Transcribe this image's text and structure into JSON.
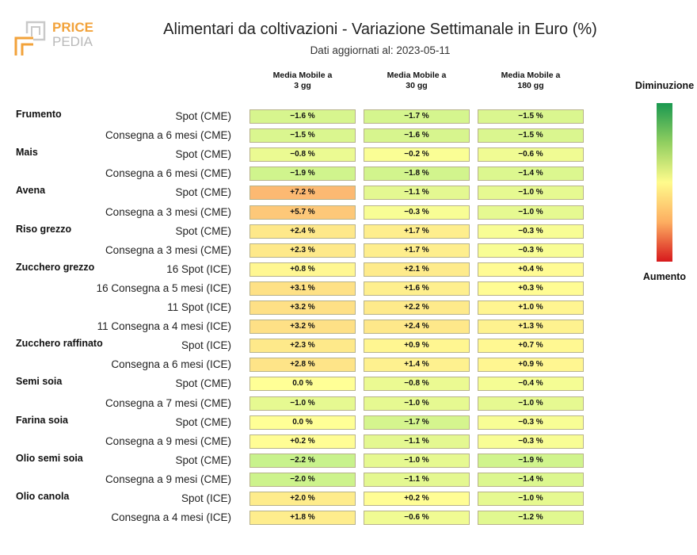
{
  "header": {
    "title": "Alimentari da coltivazioni - Variazione Settimanale in Euro (%)",
    "subtitle": "Dati aggiornati al: 2023-05-11",
    "logo_top": "PRICE",
    "logo_bottom": "PEDIA"
  },
  "legend": {
    "top_label": "Diminuzione",
    "bottom_label": "Aumento"
  },
  "chart_data": {
    "type": "heatmap",
    "columns": [
      "Media Mobile a\n3 gg",
      "Media Mobile a\n30 gg",
      "Media Mobile a\n180 gg"
    ],
    "rows": [
      {
        "commodity": "Frumento",
        "label": "Spot (CME)",
        "values": [
          -1.6,
          -1.7,
          -1.5
        ],
        "display": [
          "-1.6 %",
          "-1.7 %",
          "-1.5 %"
        ]
      },
      {
        "commodity": "",
        "label": "Consegna a 6 mesi (CME)",
        "values": [
          -1.5,
          -1.6,
          -1.5
        ],
        "display": [
          "-1.5 %",
          "-1.6 %",
          "-1.5 %"
        ]
      },
      {
        "commodity": "Mais",
        "label": "Spot (CME)",
        "values": [
          -0.8,
          -0.2,
          -0.6
        ],
        "display": [
          "-0.8 %",
          "-0.2 %",
          "-0.6 %"
        ]
      },
      {
        "commodity": "",
        "label": "Consegna a 6 mesi (CME)",
        "values": [
          -1.9,
          -1.8,
          -1.4
        ],
        "display": [
          "-1.9 %",
          "-1.8 %",
          "-1.4 %"
        ]
      },
      {
        "commodity": "Avena",
        "label": "Spot (CME)",
        "values": [
          7.2,
          -1.1,
          -1.0
        ],
        "display": [
          "+7.2 %",
          "-1.1 %",
          "-1.0 %"
        ]
      },
      {
        "commodity": "",
        "label": "Consegna a 3 mesi (CME)",
        "values": [
          5.7,
          -0.3,
          -1.0
        ],
        "display": [
          "+5.7 %",
          "-0.3 %",
          "-1.0 %"
        ]
      },
      {
        "commodity": "Riso grezzo",
        "label": "Spot (CME)",
        "values": [
          2.4,
          1.7,
          -0.3
        ],
        "display": [
          "+2.4 %",
          "+1.7 %",
          "-0.3 %"
        ]
      },
      {
        "commodity": "",
        "label": "Consegna a 3 mesi (CME)",
        "values": [
          2.3,
          1.7,
          -0.3
        ],
        "display": [
          "+2.3 %",
          "+1.7 %",
          "-0.3 %"
        ]
      },
      {
        "commodity": "Zucchero grezzo",
        "label": "16 Spot (ICE)",
        "values": [
          0.8,
          2.1,
          0.4
        ],
        "display": [
          "+0.8 %",
          "+2.1 %",
          "+0.4 %"
        ]
      },
      {
        "commodity": "",
        "label": "16 Consegna a 5 mesi (ICE)",
        "values": [
          3.1,
          1.6,
          0.3
        ],
        "display": [
          "+3.1 %",
          "+1.6 %",
          "+0.3 %"
        ]
      },
      {
        "commodity": "",
        "label": "11 Spot (ICE)",
        "values": [
          3.2,
          2.2,
          1.0
        ],
        "display": [
          "+3.2 %",
          "+2.2 %",
          "+1.0 %"
        ]
      },
      {
        "commodity": "",
        "label": "11 Consegna a 4 mesi (ICE)",
        "values": [
          3.2,
          2.4,
          1.3
        ],
        "display": [
          "+3.2 %",
          "+2.4 %",
          "+1.3 %"
        ]
      },
      {
        "commodity": "Zucchero raffinato",
        "label": "Spot (ICE)",
        "values": [
          2.3,
          0.9,
          0.7
        ],
        "display": [
          "+2.3 %",
          "+0.9 %",
          "+0.7 %"
        ]
      },
      {
        "commodity": "",
        "label": "Consegna a 6 mesi (ICE)",
        "values": [
          2.8,
          1.4,
          0.9
        ],
        "display": [
          "+2.8 %",
          "+1.4 %",
          "+0.9 %"
        ]
      },
      {
        "commodity": "Semi soia",
        "label": "Spot (CME)",
        "values": [
          0.0,
          -0.8,
          -0.4
        ],
        "display": [
          "0.0 %",
          "-0.8 %",
          "-0.4 %"
        ]
      },
      {
        "commodity": "",
        "label": "Consegna a 7 mesi (CME)",
        "values": [
          -1.0,
          -1.0,
          -1.0
        ],
        "display": [
          "-1.0 %",
          "-1.0 %",
          "-1.0 %"
        ]
      },
      {
        "commodity": "Farina soia",
        "label": "Spot (CME)",
        "values": [
          0.0,
          -1.7,
          -0.3
        ],
        "display": [
          "0.0 %",
          "-1.7 %",
          "-0.3 %"
        ]
      },
      {
        "commodity": "",
        "label": "Consegna a 9 mesi (CME)",
        "values": [
          0.2,
          -1.1,
          -0.3
        ],
        "display": [
          "+0.2 %",
          "-1.1 %",
          "-0.3 %"
        ]
      },
      {
        "commodity": "Olio semi soia",
        "label": "Spot (CME)",
        "values": [
          -2.2,
          -1.0,
          -1.9
        ],
        "display": [
          "-2.2 %",
          "-1.0 %",
          "-1.9 %"
        ]
      },
      {
        "commodity": "",
        "label": "Consegna a 9 mesi (CME)",
        "values": [
          -2.0,
          -1.1,
          -1.4
        ],
        "display": [
          "-2.0 %",
          "-1.1 %",
          "-1.4 %"
        ]
      },
      {
        "commodity": "Olio canola",
        "label": "Spot (ICE)",
        "values": [
          2.0,
          0.2,
          -1.0
        ],
        "display": [
          "+2.0 %",
          "+0.2 %",
          "-1.0 %"
        ]
      },
      {
        "commodity": "",
        "label": "Consegna a 4 mesi (ICE)",
        "values": [
          1.8,
          -0.6,
          -1.2
        ],
        "display": [
          "+1.8 %",
          "-0.6 %",
          "-1.2 %"
        ]
      }
    ]
  }
}
